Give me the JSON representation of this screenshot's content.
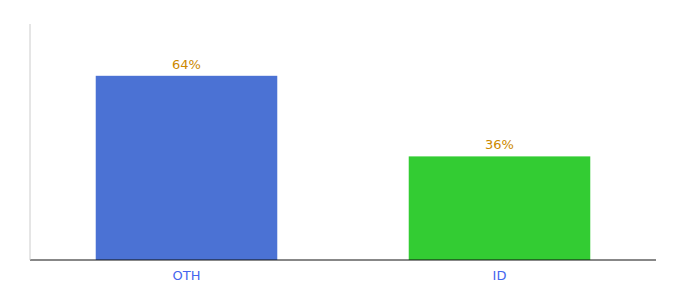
{
  "chart_data": {
    "type": "bar",
    "categories": [
      "OTH",
      "ID"
    ],
    "values": [
      64,
      36
    ],
    "colors": [
      "#4B72D4",
      "#33CC33"
    ],
    "value_labels": [
      "64%",
      "36%"
    ],
    "data_labels": true,
    "ylim": [
      0,
      82
    ],
    "tick_labels": "x",
    "grid": false
  }
}
